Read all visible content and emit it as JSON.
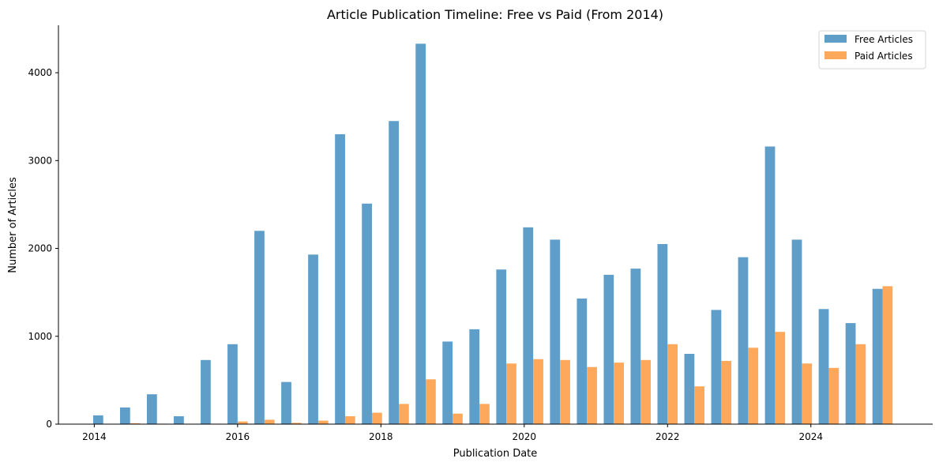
{
  "chart_data": {
    "type": "bar",
    "title": "Article Publication Timeline: Free vs Paid (From 2014)",
    "xlabel": "Publication Date",
    "ylabel": "Number of Articles",
    "x_tick_labels": [
      "2014",
      "2016",
      "2018",
      "2020",
      "2022",
      "2024"
    ],
    "x_tick_values": [
      2014,
      2016,
      2018,
      2020,
      2022,
      2024
    ],
    "y_ticks": [
      0,
      1000,
      2000,
      3000,
      4000
    ],
    "ylim": [
      0,
      4540
    ],
    "xlim": [
      2013.5,
      2025.7
    ],
    "periods": [
      2014.125,
      2014.5,
      2014.875,
      2015.25,
      2015.625,
      2016.0,
      2016.375,
      2016.75,
      2017.125,
      2017.5,
      2017.875,
      2018.25,
      2018.625,
      2019.0,
      2019.375,
      2019.75,
      2020.125,
      2020.5,
      2020.875,
      2021.25,
      2021.625,
      2022.0,
      2022.375,
      2022.75,
      2023.125,
      2023.5,
      2023.875,
      2024.25,
      2024.625,
      2025.0
    ],
    "period_width": 0.375,
    "grid": false,
    "legend_position": "top-right",
    "series": [
      {
        "name": "Free Articles",
        "color": "#5f9ec9",
        "values": [
          100,
          190,
          340,
          90,
          730,
          910,
          2200,
          480,
          1930,
          3300,
          2510,
          3450,
          4330,
          940,
          1080,
          1760,
          2240,
          2100,
          1430,
          1700,
          1770,
          2050,
          800,
          1300,
          1900,
          3160,
          2100,
          1310,
          1150,
          1540
        ]
      },
      {
        "name": "Paid Articles",
        "color": "#fea85b",
        "values": [
          0,
          10,
          5,
          0,
          5,
          30,
          50,
          15,
          40,
          90,
          130,
          230,
          510,
          120,
          230,
          690,
          740,
          730,
          650,
          700,
          730,
          910,
          430,
          720,
          870,
          1050,
          690,
          640,
          910,
          1570
        ]
      }
    ]
  }
}
